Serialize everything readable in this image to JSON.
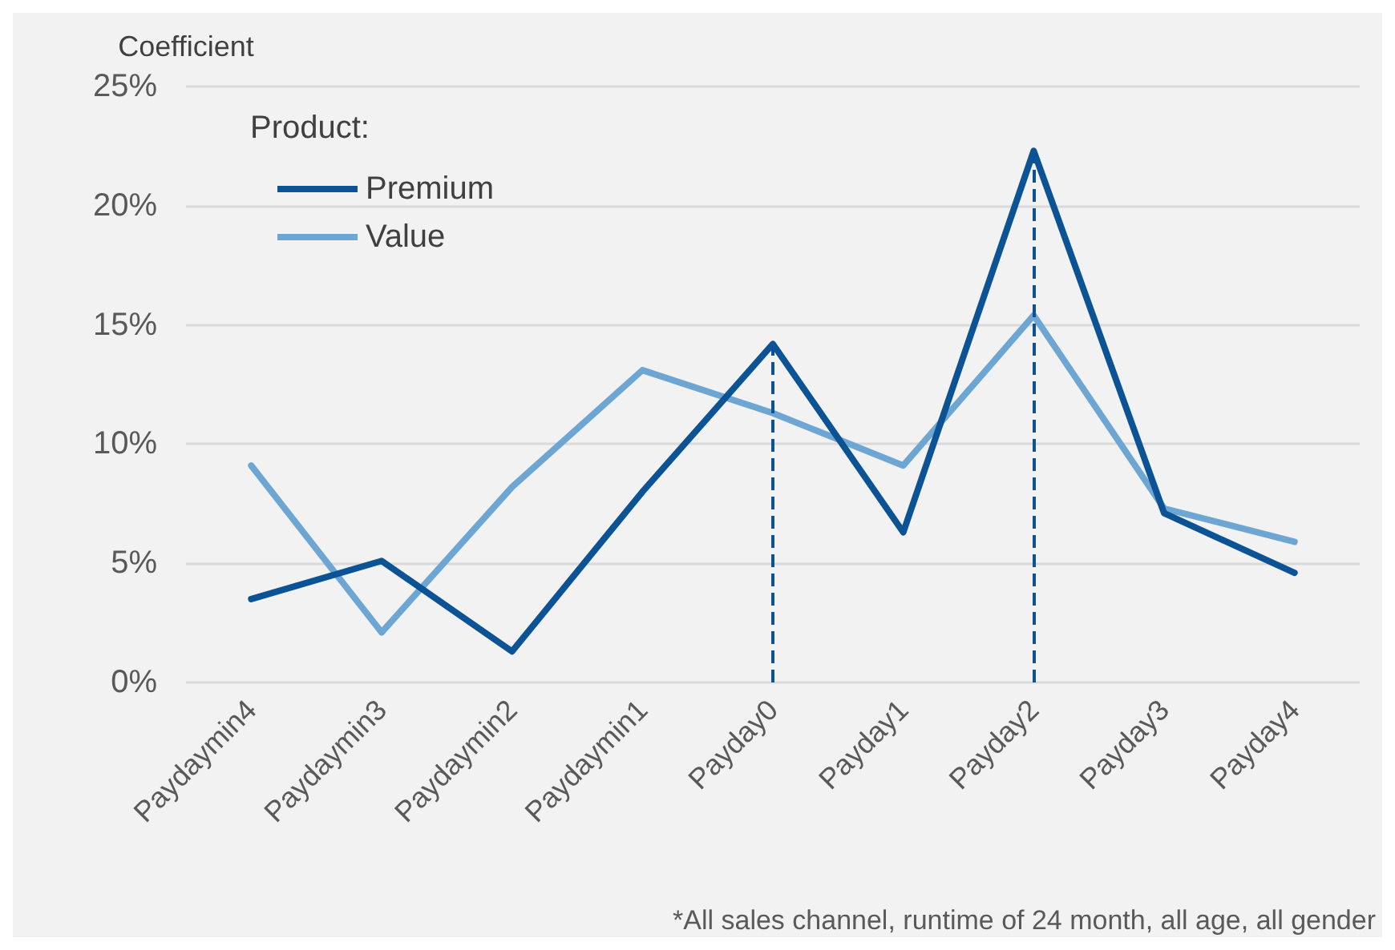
{
  "chart_data": {
    "type": "line",
    "ylabel": "Coefficient",
    "legend_title": "Product:",
    "categories": [
      "Paydaymin4",
      "Paydaymin3",
      "Paydaymin2",
      "Paydaymin1",
      "Payday0",
      "Payday1",
      "Payday2",
      "Payday3",
      "Payday4"
    ],
    "series": [
      {
        "name": "Premium",
        "color": "#0b5394",
        "values": [
          3.5,
          5.1,
          1.3,
          8.0,
          14.2,
          6.3,
          22.3,
          7.1,
          4.6
        ]
      },
      {
        "name": "Value",
        "color": "#6ea6d3",
        "values": [
          9.1,
          2.1,
          8.2,
          13.1,
          11.3,
          9.1,
          15.4,
          7.3,
          5.9
        ]
      }
    ],
    "ylim": [
      0,
      25
    ],
    "yticks": [
      {
        "value": 0,
        "label": "0%"
      },
      {
        "value": 5,
        "label": "5%"
      },
      {
        "value": 10,
        "label": "10%"
      },
      {
        "value": 15,
        "label": "15%"
      },
      {
        "value": 20,
        "label": "20%"
      },
      {
        "value": 25,
        "label": "25%"
      }
    ],
    "grid": "y",
    "legend": "top left",
    "marker": "none",
    "line_style": "solid",
    "ref_lines": [
      {
        "axis": "x",
        "value": "Payday0",
        "color": "#0b5394",
        "line_style": "dashed"
      },
      {
        "axis": "x",
        "value": "Payday2",
        "color": "#0b5394",
        "line_style": "dashed"
      }
    ],
    "annotations": [
      "*All sales channel, runtime of 24 month, all age, all gender"
    ]
  }
}
